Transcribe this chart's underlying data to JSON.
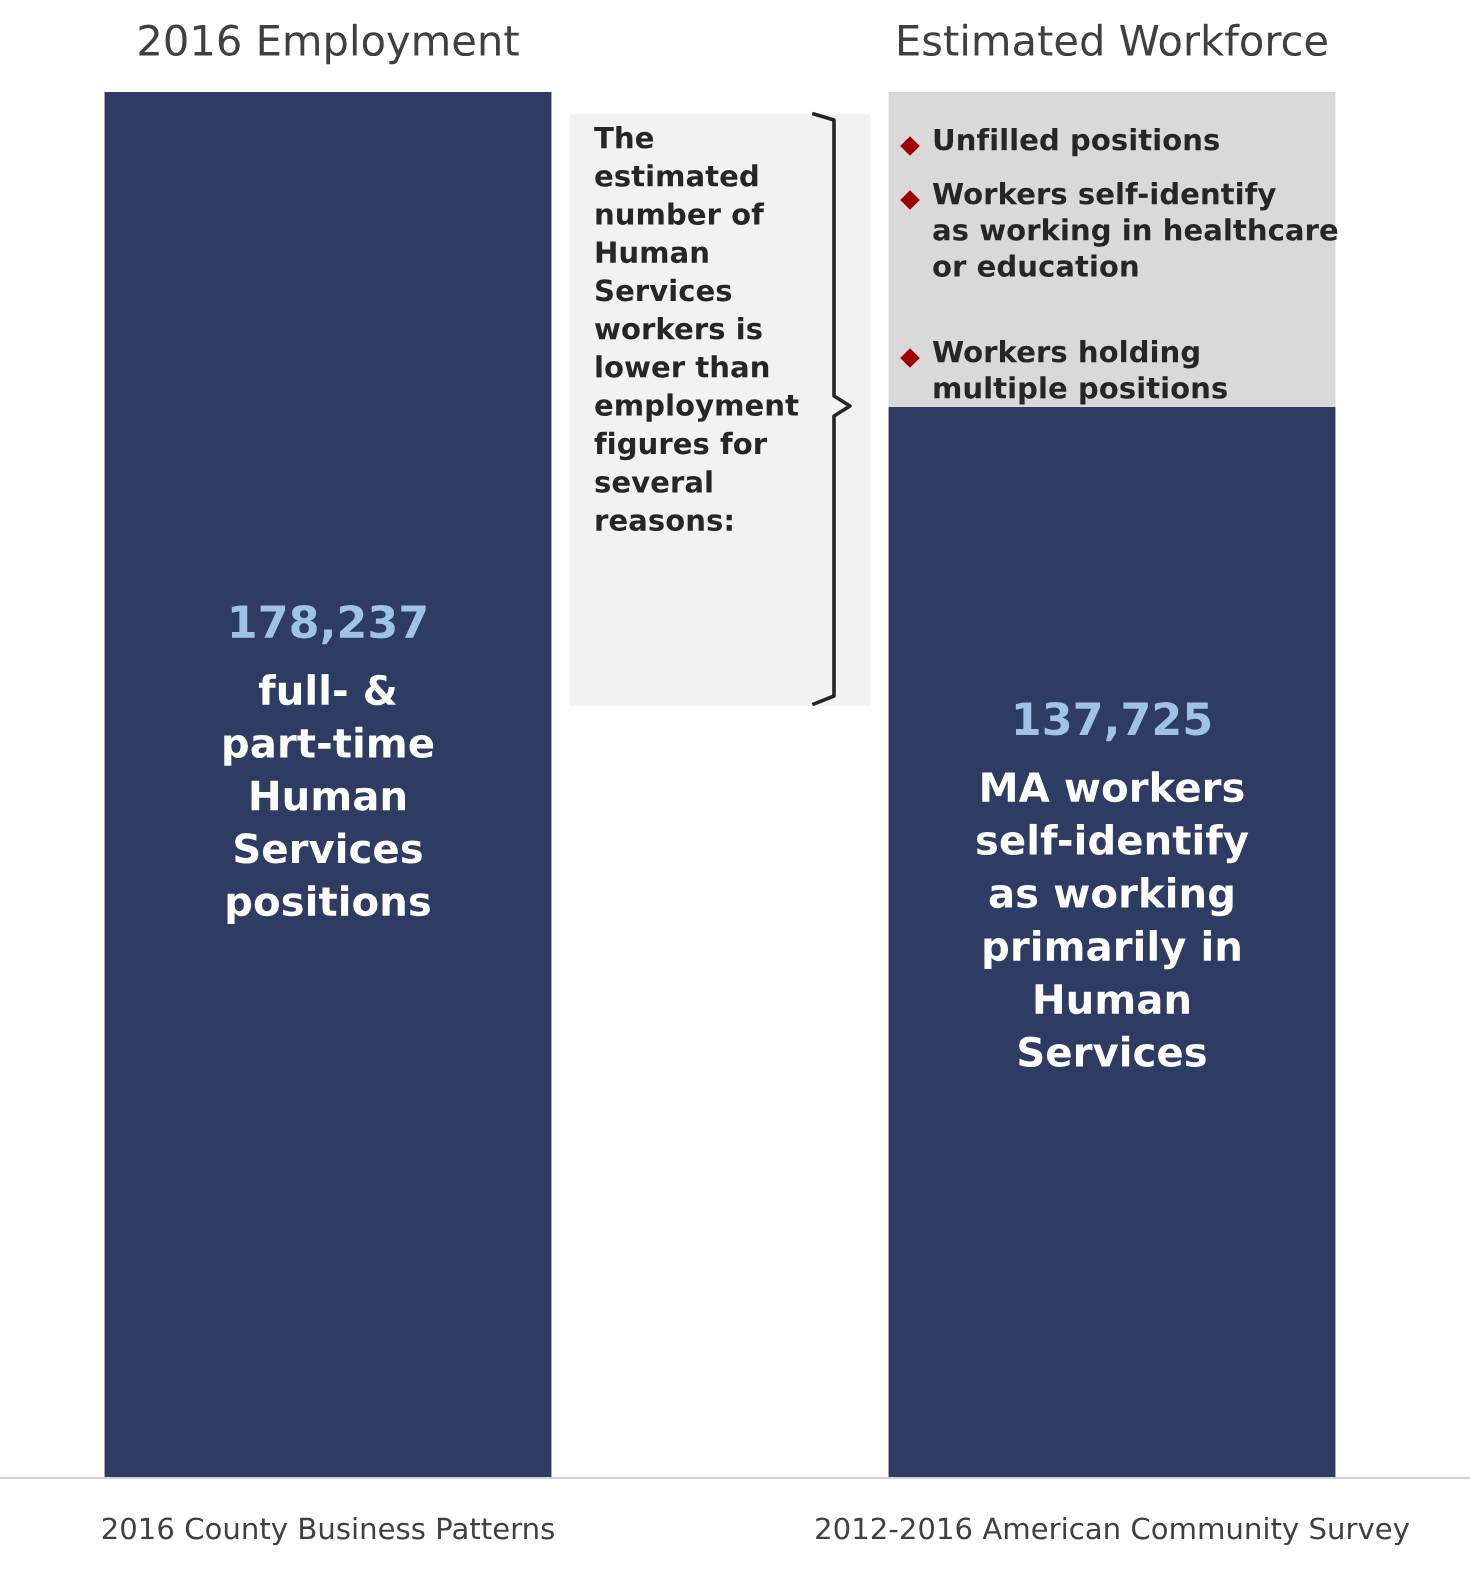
{
  "chart_data": {
    "type": "bar",
    "stacked": true,
    "categories": [
      "2016 County Business Patterns",
      "2012-2016 American Community Survey"
    ],
    "series": [
      {
        "color": "#2e3b63",
        "values": [
          178237,
          137725
        ],
        "value_labels": [
          "178,237",
          "137,725"
        ]
      },
      {
        "color": "#d9d9d9",
        "values": [
          null,
          40512
        ]
      }
    ],
    "ylim": [
      0,
      178237
    ],
    "annotations": [
      "2016 Employment",
      "Estimated Workforce",
      "full- &\npart-time\nHuman\nServices\npositions",
      "MA workers\nself-identify\nas working\nprimarily in\nHuman\nServices",
      "The\nestimated\nnumber of\nHuman\nServices\nworkers is\nlower than\nemployment\nfigures for\nseveral\nreasons:",
      "Unfilled positions",
      "Workers self-identify\nas working in healthcare\nor education",
      "Workers holding\nmultiple positions"
    ]
  }
}
